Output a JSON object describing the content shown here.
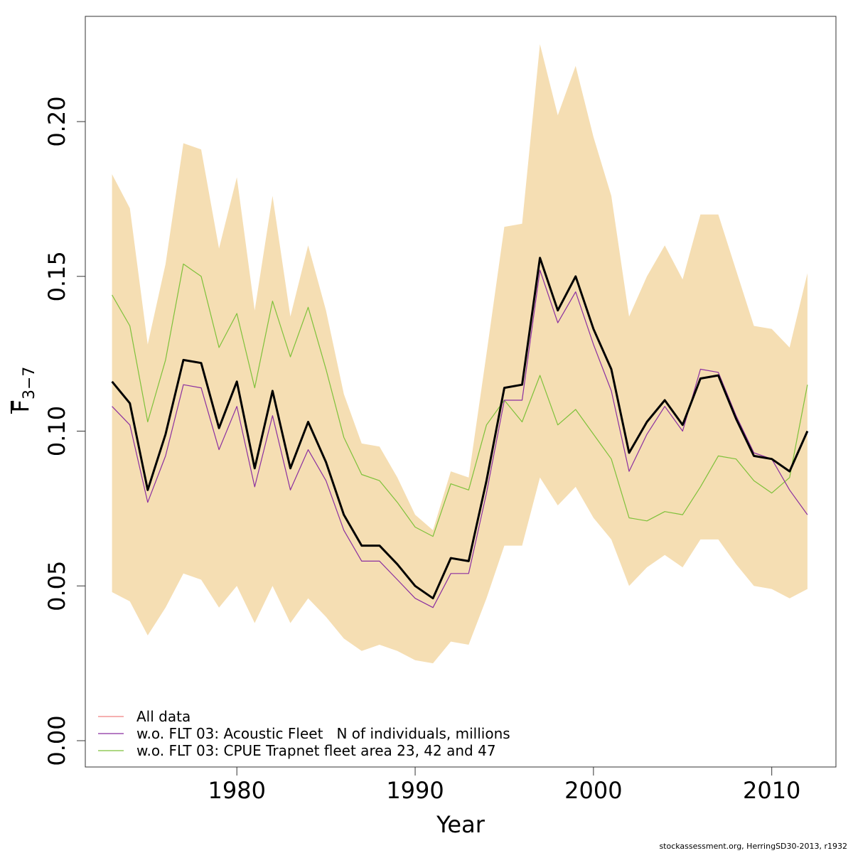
{
  "chart_data": {
    "type": "line",
    "xlabel": "Year",
    "ylabel": {
      "main": "F",
      "sub": "3−7"
    },
    "xlim": [
      1971.5,
      2013.6
    ],
    "ylim": [
      -0.0085,
      0.234
    ],
    "x_ticks": [
      1980,
      1990,
      2000,
      2010
    ],
    "x_tick_labels": [
      "1980",
      "1990",
      "2000",
      "2010"
    ],
    "y_ticks": [
      0.0,
      0.05,
      0.1,
      0.15,
      0.2
    ],
    "y_tick_labels": [
      "0.00",
      "0.05",
      "0.10",
      "0.15",
      "0.20"
    ],
    "grid": false,
    "legend_position": "bottom-left",
    "years": [
      1973,
      1974,
      1975,
      1976,
      1977,
      1978,
      1979,
      1980,
      1981,
      1982,
      1983,
      1984,
      1985,
      1986,
      1987,
      1988,
      1989,
      1990,
      1991,
      1992,
      1993,
      1994,
      1995,
      1996,
      1997,
      1998,
      1999,
      2000,
      2001,
      2002,
      2003,
      2004,
      2005,
      2006,
      2007,
      2008,
      2009,
      2010,
      2011,
      2012
    ],
    "confidence_band": {
      "color": "#f5deb3",
      "upper": [
        0.183,
        0.172,
        0.128,
        0.154,
        0.193,
        0.191,
        0.159,
        0.182,
        0.139,
        0.176,
        0.137,
        0.16,
        0.139,
        0.112,
        0.096,
        0.095,
        0.085,
        0.073,
        0.068,
        0.087,
        0.085,
        0.125,
        0.166,
        0.167,
        0.225,
        0.202,
        0.218,
        0.195,
        0.176,
        0.137,
        0.15,
        0.16,
        0.149,
        0.17,
        0.17,
        0.152,
        0.134,
        0.133,
        0.127,
        0.151
      ],
      "lower": [
        0.048,
        0.045,
        0.034,
        0.043,
        0.054,
        0.052,
        0.043,
        0.05,
        0.038,
        0.05,
        0.038,
        0.046,
        0.04,
        0.033,
        0.029,
        0.031,
        0.029,
        0.026,
        0.025,
        0.032,
        0.031,
        0.046,
        0.063,
        0.063,
        0.085,
        0.076,
        0.082,
        0.072,
        0.065,
        0.05,
        0.056,
        0.06,
        0.056,
        0.065,
        0.065,
        0.057,
        0.05,
        0.049,
        0.046,
        0.049
      ]
    },
    "series": [
      {
        "name": "All data",
        "color": "#000000",
        "width": 3,
        "legend_color": "#f08080",
        "in_legend": true,
        "values": [
          0.116,
          0.109,
          0.081,
          0.099,
          0.123,
          0.122,
          0.101,
          0.116,
          0.088,
          0.113,
          0.088,
          0.103,
          0.09,
          0.073,
          0.063,
          0.063,
          0.057,
          0.05,
          0.046,
          0.059,
          0.058,
          0.084,
          0.114,
          0.115,
          0.156,
          0.139,
          0.15,
          0.133,
          0.12,
          0.093,
          0.103,
          0.11,
          0.102,
          0.117,
          0.118,
          0.104,
          0.092,
          0.091,
          0.087,
          0.1
        ]
      },
      {
        "name": "w.o. FLT 03: Acoustic Fleet   N of individuals, millions",
        "color": "#8b2fa0",
        "width": 1.2,
        "legend_color": "#8b2fa0",
        "in_legend": true,
        "values": [
          0.108,
          0.102,
          0.077,
          0.092,
          0.115,
          0.114,
          0.094,
          0.108,
          0.082,
          0.105,
          0.081,
          0.094,
          0.084,
          0.068,
          0.058,
          0.058,
          0.052,
          0.046,
          0.043,
          0.054,
          0.054,
          0.08,
          0.11,
          0.11,
          0.152,
          0.135,
          0.145,
          0.128,
          0.113,
          0.087,
          0.099,
          0.108,
          0.1,
          0.12,
          0.119,
          0.105,
          0.093,
          0.091,
          0.081,
          0.073
        ]
      },
      {
        "name": "w.o. FLT 03: CPUE Trapnet fleet area 23, 42 and 47",
        "color": "#7ec13a",
        "width": 1.2,
        "legend_color": "#7ec13a",
        "in_legend": true,
        "values": [
          0.144,
          0.134,
          0.103,
          0.123,
          0.154,
          0.15,
          0.127,
          0.138,
          0.114,
          0.142,
          0.124,
          0.14,
          0.12,
          0.098,
          0.086,
          0.084,
          0.077,
          0.069,
          0.066,
          0.083,
          0.081,
          0.102,
          0.11,
          0.103,
          0.118,
          0.102,
          0.107,
          0.099,
          0.091,
          0.072,
          0.071,
          0.074,
          0.073,
          0.082,
          0.092,
          0.091,
          0.084,
          0.08,
          0.085,
          0.115
        ]
      }
    ]
  },
  "footer": "stockassessment.org, HerringSD30-2013, r1932"
}
